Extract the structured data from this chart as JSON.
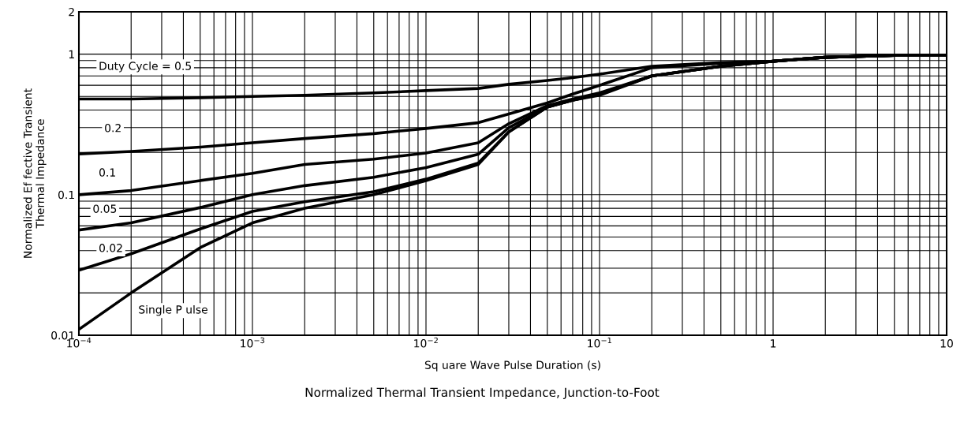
{
  "chart_data": {
    "type": "line",
    "title": "Normalized Thermal Transient Impedance, Junction-to-Foot",
    "xlabel": "Sq uare Wave Pulse Duration (s)",
    "ylabel": "Normalized Ef fective Transient\nThermal Impedance",
    "log": "xy",
    "grid": true,
    "legend": false,
    "marker": "none",
    "line_style": "solid",
    "x": [
      0.0001,
      0.0002,
      0.0005,
      0.001,
      0.002,
      0.005,
      0.01,
      0.02,
      0.03,
      0.05,
      0.07,
      0.1,
      0.2,
      0.5,
      1,
      2,
      5,
      10
    ],
    "series": [
      {
        "name": "Duty Cycle = 0.5",
        "color": "#000000",
        "values": [
          0.48,
          0.48,
          0.49,
          0.5,
          0.51,
          0.53,
          0.55,
          0.57,
          0.61,
          0.65,
          0.68,
          0.72,
          0.82,
          0.87,
          0.89,
          0.95,
          0.98,
          0.98
        ]
      },
      {
        "name": "0.2",
        "color": "#000000",
        "values": [
          0.195,
          0.203,
          0.218,
          0.234,
          0.251,
          0.272,
          0.296,
          0.325,
          0.375,
          0.45,
          0.52,
          0.6,
          0.8,
          0.86,
          0.89,
          0.95,
          0.98,
          0.98
        ]
      },
      {
        "name": "0.1",
        "color": "#000000",
        "values": [
          0.1,
          0.107,
          0.126,
          0.142,
          0.164,
          0.179,
          0.198,
          0.234,
          0.32,
          0.43,
          0.48,
          0.53,
          0.7,
          0.82,
          0.89,
          0.95,
          0.98,
          0.98
        ]
      },
      {
        "name": "0.05",
        "color": "#000000",
        "values": [
          0.056,
          0.063,
          0.081,
          0.1,
          0.116,
          0.133,
          0.156,
          0.194,
          0.3,
          0.42,
          0.47,
          0.52,
          0.7,
          0.82,
          0.89,
          0.95,
          0.98,
          0.98
        ]
      },
      {
        "name": "0.02",
        "color": "#000000",
        "values": [
          0.029,
          0.038,
          0.057,
          0.076,
          0.089,
          0.105,
          0.129,
          0.168,
          0.28,
          0.42,
          0.47,
          0.52,
          0.7,
          0.82,
          0.89,
          0.95,
          0.98,
          0.98
        ]
      },
      {
        "name": "Single P ulse",
        "color": "#000000",
        "values": [
          0.011,
          0.02,
          0.042,
          0.063,
          0.08,
          0.1,
          0.126,
          0.164,
          0.28,
          0.42,
          0.47,
          0.51,
          0.7,
          0.82,
          0.89,
          0.95,
          0.98,
          0.98
        ]
      }
    ],
    "xlim": [
      0.0001,
      10
    ],
    "ylim": [
      0.01,
      2
    ],
    "xticks": [
      {
        "value": 0.0001,
        "label": "10$^{−4}$"
      },
      {
        "value": 0.001,
        "label": "10$^{−3}$"
      },
      {
        "value": 0.01,
        "label": "10$^{−2}$"
      },
      {
        "value": 0.1,
        "label": "10$^{−1}$"
      },
      1,
      10
    ],
    "yticks": [
      0.01,
      0.1,
      1,
      2
    ]
  }
}
